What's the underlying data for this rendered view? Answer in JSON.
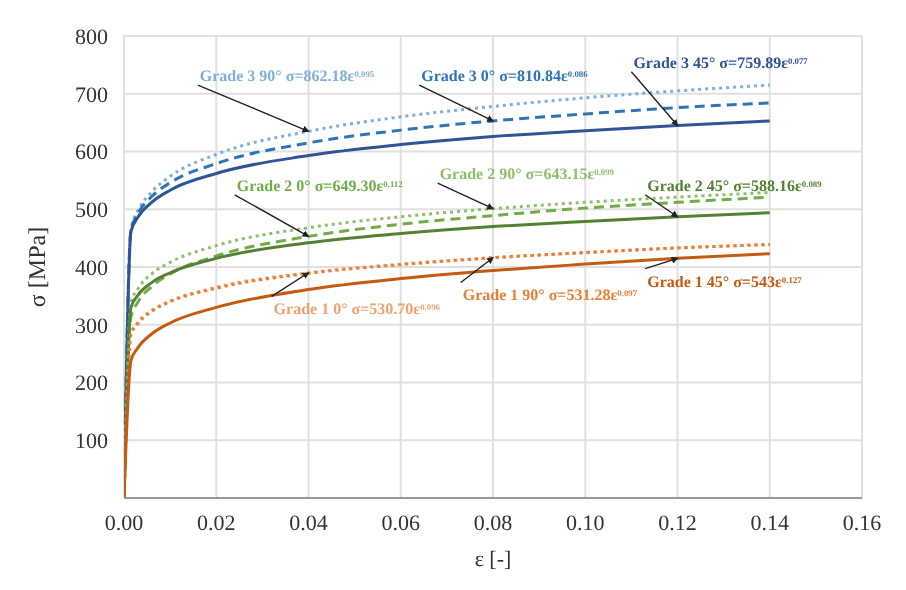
{
  "chart_data": {
    "type": "line",
    "xlabel": "ε [-]",
    "ylabel": "σ [MPa]",
    "x": [
      0,
      0.0015,
      0.003,
      0.006,
      0.01,
      0.02,
      0.04,
      0.06,
      0.08,
      0.1,
      0.12,
      0.14
    ],
    "series": [
      {
        "name": "Grade 3 90° σ=862.18ε$^{0.095}$",
        "color": "#7fb0dc",
        "line_style": "dotted",
        "values": [
          0,
          465,
          497,
          530,
          557,
          595,
          635,
          660,
          678,
          693,
          705,
          715
        ]
      },
      {
        "name": "Grade 3 0° σ=810.84ε$^{0.086}$",
        "color": "#2e75b6",
        "line_style": "dashed",
        "values": [
          0,
          463,
          492,
          522,
          546,
          579,
          615,
          637,
          653,
          665,
          676,
          684
        ]
      },
      {
        "name": "Grade 3 45° σ=759.89ε$^{0.077}$",
        "color": "#2f5597",
        "line_style": "solid",
        "values": [
          0,
          461,
          486,
          512,
          533,
          562,
          593,
          612,
          626,
          636,
          645,
          653
        ]
      },
      {
        "name": "Grade 2 0° σ=649.30ε$^{0.112}$",
        "color": "#70ad47",
        "line_style": "dashed",
        "values": [
          0,
          313,
          339,
          366,
          388,
          419,
          453,
          474,
          489,
          502,
          512,
          521
        ]
      },
      {
        "name": "Grade 2 90° σ=643.15ε$^{0.099}$",
        "color": "#8cc06a",
        "line_style": "dotted",
        "values": [
          0,
          338,
          362,
          388,
          408,
          437,
          468,
          487,
          501,
          512,
          521,
          529
        ]
      },
      {
        "name": "Grade 2 45° σ=588.16ε$^{0.089}$",
        "color": "#548235",
        "line_style": "solid",
        "values": [
          0,
          330,
          351,
          373,
          390,
          415,
          442,
          458,
          470,
          479,
          487,
          494
        ]
      },
      {
        "name": "Grade 1 0° σ=530.70ε$^{0.096}$",
        "color": "#f0a070",
        "line_style": "dotted",
        "values": [
          0,
          284,
          304,
          325,
          341,
          365,
          390,
          405,
          416,
          425,
          433,
          439
        ]
      },
      {
        "name": "Grade 1 90° σ=531.28ε$^{0.097}$",
        "color": "#ed7d31",
        "line_style": "dotted",
        "values": [
          0,
          283,
          302,
          323,
          340,
          363,
          389,
          404,
          416,
          425,
          433,
          439
        ]
      },
      {
        "name": "Grade 1 45° σ=543ε$^{0.127}$",
        "color": "#c55a11",
        "line_style": "solid",
        "values": [
          0,
          238,
          260,
          284,
          303,
          330,
          361,
          380,
          394,
          405,
          415,
          423
        ]
      }
    ],
    "xlim": [
      0,
      0.16
    ],
    "xticks": [
      {
        "value": 0,
        "label": "0.00"
      },
      {
        "value": 0.02,
        "label": "0.02"
      },
      {
        "value": 0.04,
        "label": "0.04"
      },
      {
        "value": 0.06,
        "label": "0.06"
      },
      {
        "value": 0.08,
        "label": "0.08"
      },
      {
        "value": 0.1,
        "label": "0.10"
      },
      {
        "value": 0.12,
        "label": "0.12"
      },
      {
        "value": 0.14,
        "label": "0.14"
      },
      {
        "value": 0.16,
        "label": "0.16"
      }
    ],
    "ylim": [
      0,
      800
    ],
    "yticks": [
      {
        "value": 0,
        "label": null
      },
      100,
      200,
      300,
      400,
      500,
      600,
      700,
      800
    ],
    "grid": true,
    "legend": false,
    "marker": "none"
  }
}
